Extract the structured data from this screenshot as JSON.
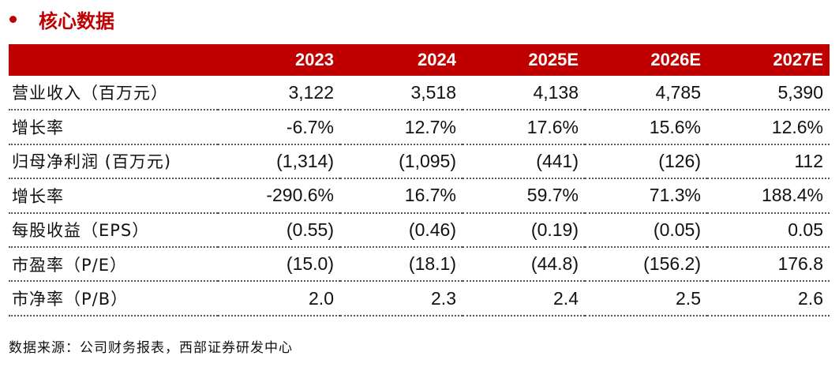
{
  "title": "核心数据",
  "table": {
    "headers": [
      "",
      "2023",
      "2024",
      "2025E",
      "2026E",
      "2027E"
    ],
    "rows": [
      {
        "label": "营业收入（百万元）",
        "values": [
          "3,122",
          "3,518",
          "4,138",
          "4,785",
          "5,390"
        ]
      },
      {
        "label": "增长率",
        "values": [
          "-6.7%",
          "12.7%",
          "17.6%",
          "15.6%",
          "12.6%"
        ]
      },
      {
        "label": "归母净利润 (百万元)",
        "values": [
          "(1,314)",
          "(1,095)",
          "(441)",
          "(126)",
          "112"
        ]
      },
      {
        "label": "增长率",
        "values": [
          "-290.6%",
          "16.7%",
          "59.7%",
          "71.3%",
          "188.4%"
        ]
      },
      {
        "label": "每股收益（EPS）",
        "values": [
          "(0.55)",
          "(0.46)",
          "(0.19)",
          "(0.05)",
          "0.05"
        ]
      },
      {
        "label": "市盈率（P/E）",
        "values": [
          "(15.0)",
          "(18.1)",
          "(44.8)",
          "(156.2)",
          "176.8"
        ]
      },
      {
        "label": "市净率（P/B）",
        "values": [
          "2.0",
          "2.3",
          "2.4",
          "2.5",
          "2.6"
        ]
      }
    ]
  },
  "source": "数据来源：公司财务报表，西部证券研发中心",
  "colors": {
    "accent": "#c00000",
    "header_text": "#ffffff"
  }
}
